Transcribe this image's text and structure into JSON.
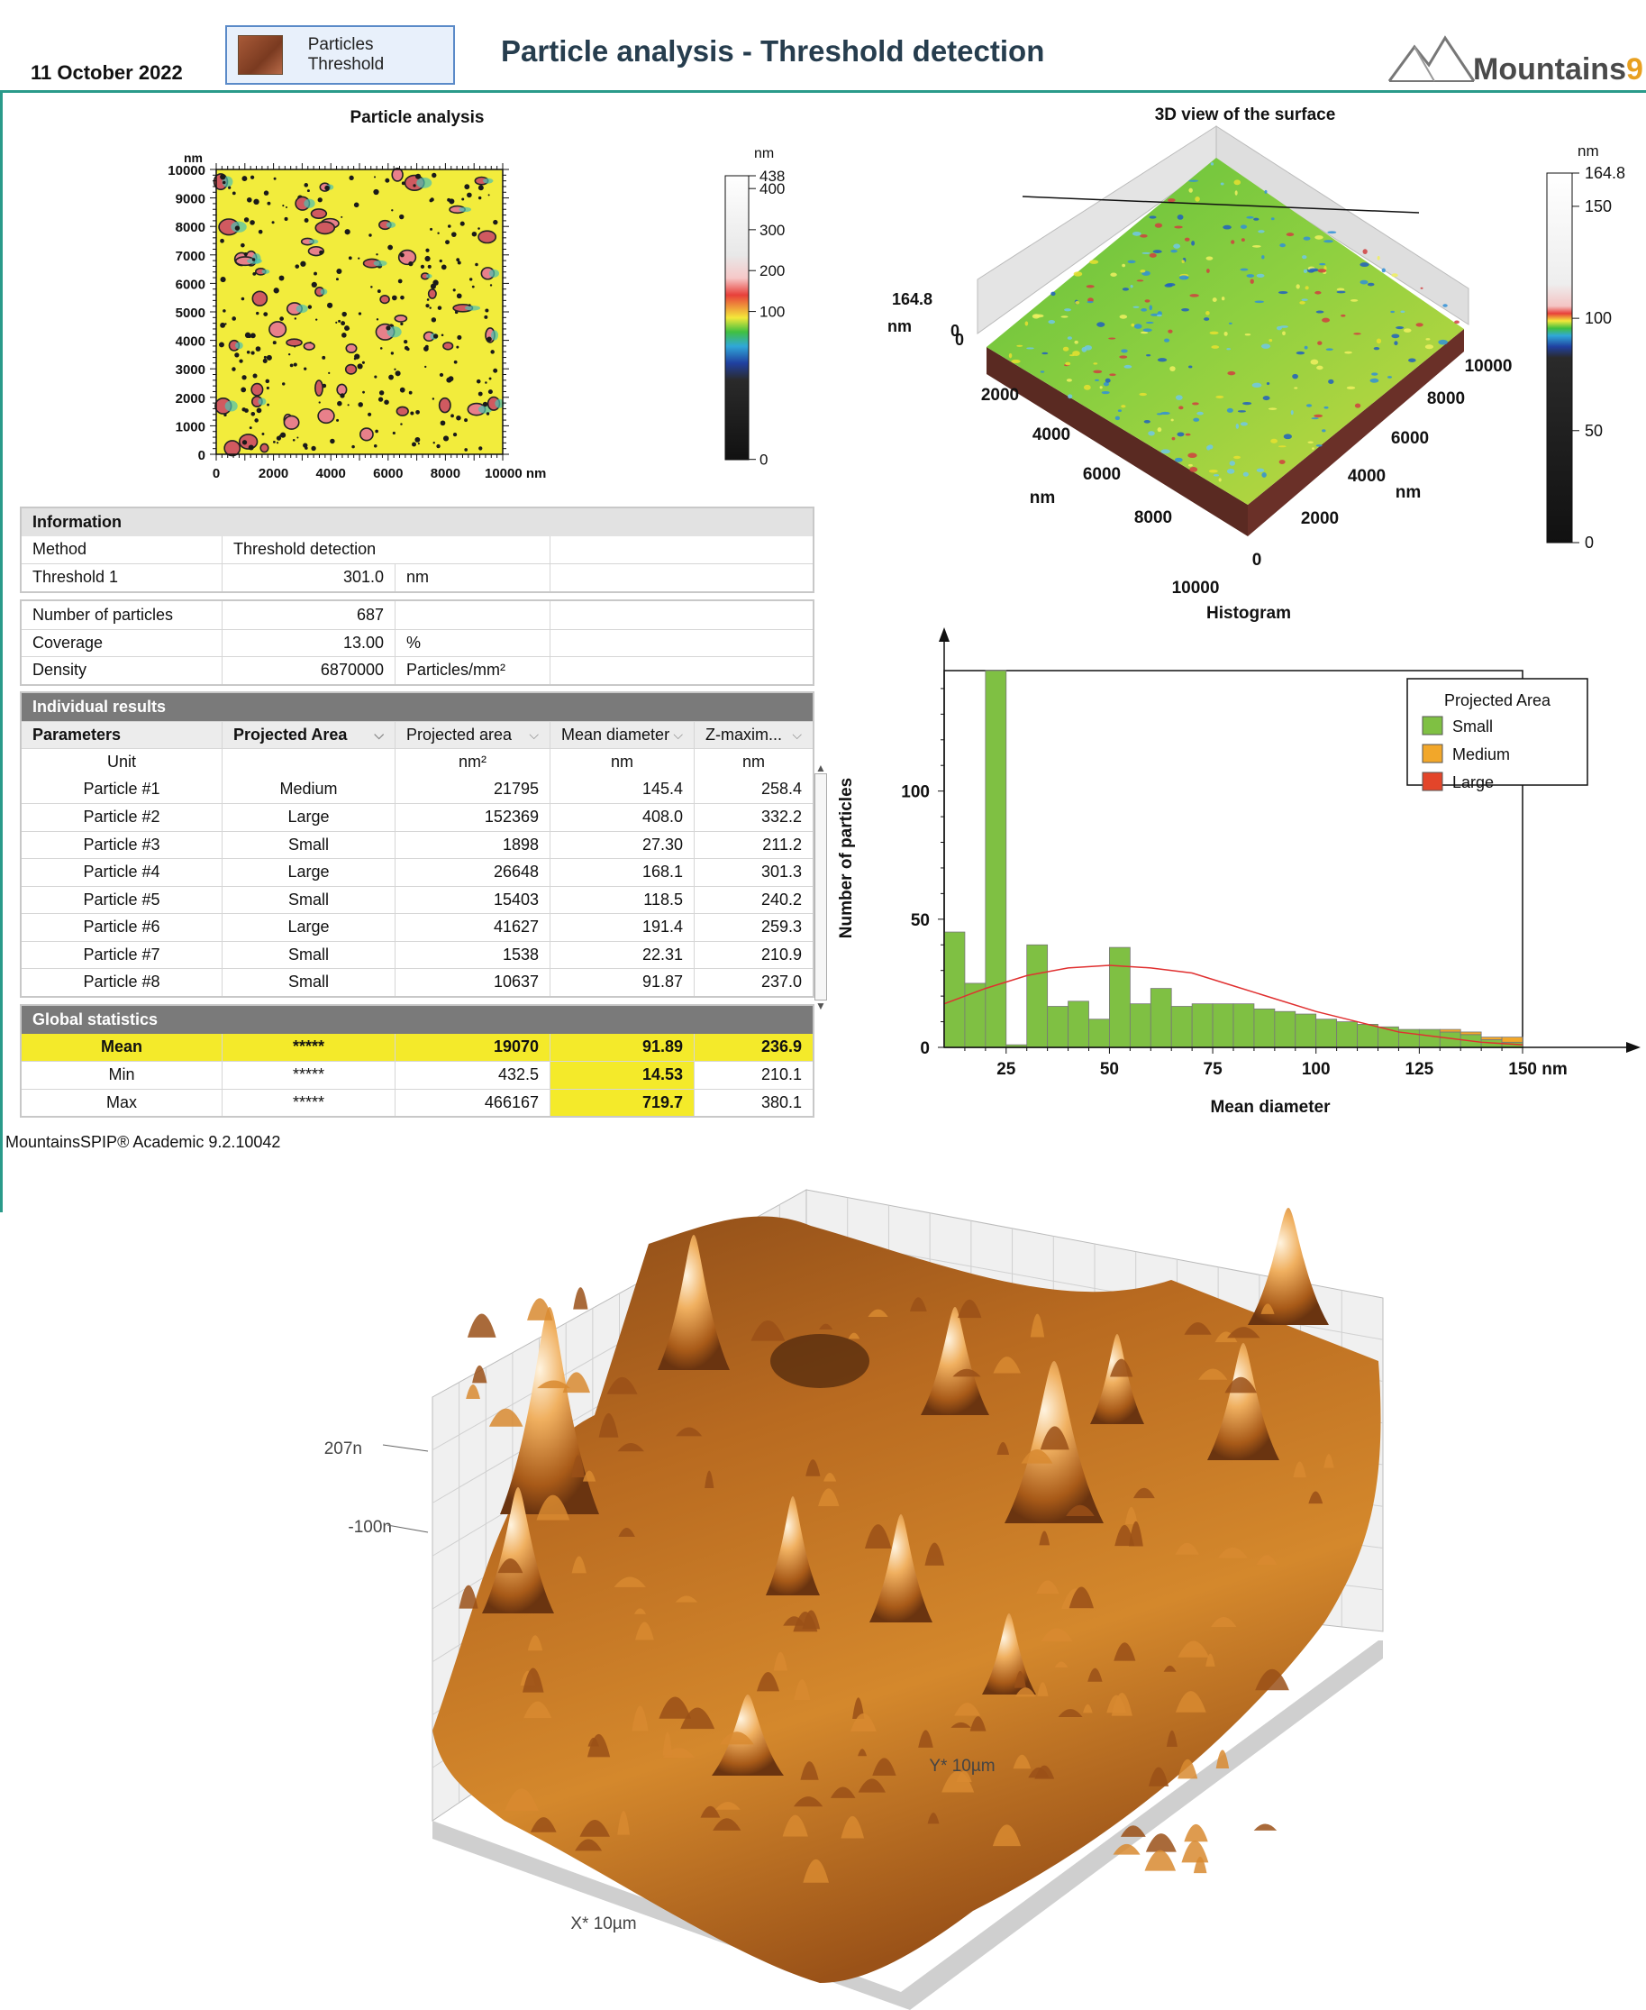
{
  "header": {
    "date": "11 October 2022",
    "tab_label": "Particles Threshold",
    "title": "Particle analysis - Threshold detection",
    "logo_text": "Mountains",
    "logo_number": "9"
  },
  "particle_map": {
    "title": "Particle analysis",
    "axis_unit": "nm",
    "y_ticks": [
      "10000",
      "9000",
      "8000",
      "7000",
      "6000",
      "5000",
      "4000",
      "3000",
      "2000",
      "1000",
      "0"
    ],
    "x_ticks": [
      "0",
      "2000",
      "4000",
      "6000",
      "8000"
    ],
    "x_last_tick": "10000 nm",
    "colorbar_unit": "nm",
    "colorbar_ticks": [
      "438",
      "400",
      "300",
      "200",
      "100",
      "0"
    ]
  },
  "view3d": {
    "title": "3D view of the surface",
    "z_top": "164.8",
    "z_unit": "nm",
    "z_zero_a": "0",
    "z_zero_b": "0",
    "x_ticks": [
      "2000",
      "4000",
      "6000",
      "8000",
      "10000"
    ],
    "x_unit": "nm",
    "y_ticks": [
      "0",
      "2000",
      "4000",
      "6000",
      "8000",
      "10000"
    ],
    "y_unit": "nm",
    "colorbar_unit": "nm",
    "colorbar_ticks": [
      "164.8",
      "150",
      "100",
      "50",
      "0"
    ]
  },
  "information": {
    "header": "Information",
    "rows": [
      [
        "Method",
        "Threshold detection",
        "",
        ""
      ],
      [
        "Threshold 1",
        "301.0",
        "nm",
        ""
      ]
    ]
  },
  "summary": {
    "rows": [
      [
        "Number of particles",
        "687",
        "",
        ""
      ],
      [
        "Coverage",
        "13.00",
        "%",
        ""
      ],
      [
        "Density",
        "6870000",
        "Particles/mm²",
        ""
      ]
    ]
  },
  "individual": {
    "header": "Individual results",
    "columns": [
      "Parameters",
      "Projected Area",
      "Projected area",
      "Mean diameter",
      "Z-maxim..."
    ],
    "units": [
      "Unit",
      "",
      "nm²",
      "nm",
      "nm"
    ],
    "rows": [
      [
        "Particle #1",
        "Medium",
        "21795",
        "145.4",
        "258.4"
      ],
      [
        "Particle #2",
        "Large",
        "152369",
        "408.0",
        "332.2"
      ],
      [
        "Particle #3",
        "Small",
        "1898",
        "27.30",
        "211.2"
      ],
      [
        "Particle #4",
        "Large",
        "26648",
        "168.1",
        "301.3"
      ],
      [
        "Particle #5",
        "Small",
        "15403",
        "118.5",
        "240.2"
      ],
      [
        "Particle #6",
        "Large",
        "41627",
        "191.4",
        "259.3"
      ],
      [
        "Particle #7",
        "Small",
        "1538",
        "22.31",
        "210.9"
      ],
      [
        "Particle #8",
        "Small",
        "10637",
        "91.87",
        "237.0"
      ]
    ]
  },
  "global": {
    "header": "Global statistics",
    "rows": [
      [
        "Mean",
        "*****",
        "19070",
        "91.89",
        "236.9"
      ],
      [
        "Min",
        "*****",
        "432.5",
        "14.53",
        "210.1"
      ],
      [
        "Max",
        "*****",
        "466167",
        "719.7",
        "380.1"
      ]
    ]
  },
  "footer": "MountainsSPIP® Academic 9.2.10042",
  "view3d_large": {
    "z_top": "207n",
    "z_bottom": "-100n",
    "x_label": "X* 10µm",
    "y_label": "Y* 10µm"
  },
  "colors": {
    "small": "#7fc043",
    "medium": "#f2a72a",
    "large": "#e3452a",
    "fit_line": "#e03030"
  },
  "chart_data": {
    "type": "bar",
    "title": "Histogram",
    "xlabel": "Mean diameter",
    "ylabel": "Number of particles",
    "x_ticks": [
      "25",
      "50",
      "75",
      "100",
      "125"
    ],
    "x_last_tick": "150 nm",
    "y_ticks": [
      "0",
      "50",
      "100"
    ],
    "xlim": [
      10,
      150
    ],
    "ylim": [
      0,
      147
    ],
    "legend_title": "Projected Area",
    "legend_position": "top-right",
    "bin_width": 5,
    "bin_starts": [
      10,
      15,
      20,
      25,
      30,
      35,
      40,
      45,
      50,
      55,
      60,
      65,
      70,
      75,
      80,
      85,
      90,
      95,
      100,
      105,
      110,
      115,
      120,
      125,
      130,
      135,
      140,
      145
    ],
    "series": [
      {
        "name": "Small",
        "values": [
          45,
          25,
          147,
          1,
          40,
          16,
          18,
          11,
          39,
          17,
          23,
          16,
          17,
          17,
          17,
          15,
          14,
          13,
          11,
          10,
          9,
          8,
          7,
          7,
          6,
          5,
          3,
          2
        ]
      },
      {
        "name": "Medium",
        "values": [
          0,
          0,
          0,
          0,
          0,
          0,
          0,
          0,
          0,
          0,
          0,
          0,
          0,
          0,
          0,
          0,
          0,
          0,
          0,
          0,
          0,
          0,
          0,
          0,
          1,
          1,
          1,
          2
        ]
      },
      {
        "name": "Large",
        "values": [
          0,
          0,
          0,
          0,
          0,
          0,
          0,
          0,
          0,
          0,
          0,
          0,
          0,
          0,
          0,
          0,
          0,
          0,
          0,
          0,
          0,
          0,
          0,
          0,
          0,
          0,
          0,
          0
        ]
      }
    ],
    "fit_curve": {
      "x": [
        10,
        20,
        30,
        40,
        50,
        60,
        70,
        80,
        90,
        100,
        110,
        120,
        130,
        140,
        150
      ],
      "y": [
        17,
        23,
        28,
        31,
        32,
        31,
        29,
        24,
        19,
        14,
        10,
        6,
        4,
        2,
        1
      ]
    }
  }
}
